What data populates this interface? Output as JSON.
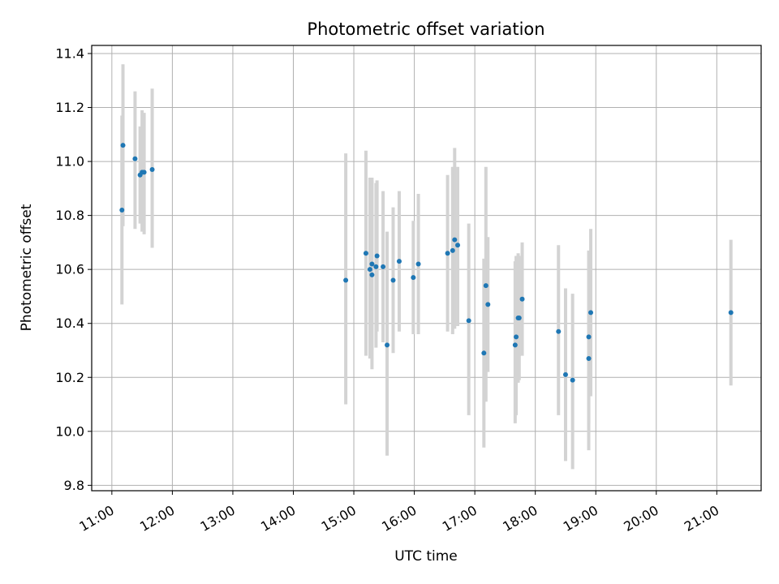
{
  "chart_data": {
    "type": "scatter",
    "title": "Photometric offset variation",
    "xlabel": "UTC time",
    "ylabel": "Photometric offset",
    "xlim": [
      "10:40",
      "21:44"
    ],
    "ylim": [
      9.78,
      11.43
    ],
    "xticks": [
      "11:00",
      "12:00",
      "13:00",
      "14:00",
      "15:00",
      "16:00",
      "17:00",
      "18:00",
      "19:00",
      "20:00",
      "21:00"
    ],
    "yticks": [
      9.8,
      10.0,
      10.2,
      10.4,
      10.6,
      10.8,
      11.0,
      11.2,
      11.4
    ],
    "grid": true,
    "marker_color": "#1f77b4",
    "errorbar_color": "#d3d3d3",
    "points": [
      {
        "x": "11:10",
        "y": 10.82,
        "low": 10.47,
        "high": 11.17
      },
      {
        "x": "11:11",
        "y": 11.06,
        "low": 10.76,
        "high": 11.36
      },
      {
        "x": "11:23",
        "y": 11.01,
        "low": 10.75,
        "high": 11.26
      },
      {
        "x": "11:28",
        "y": 10.95,
        "low": 10.77,
        "high": 11.13
      },
      {
        "x": "11:30",
        "y": 10.96,
        "low": 10.74,
        "high": 11.19
      },
      {
        "x": "11:32",
        "y": 10.96,
        "low": 10.73,
        "high": 11.18
      },
      {
        "x": "11:40",
        "y": 10.97,
        "low": 10.68,
        "high": 11.27
      },
      {
        "x": "14:52",
        "y": 10.56,
        "low": 10.1,
        "high": 11.03
      },
      {
        "x": "15:12",
        "y": 10.66,
        "low": 10.28,
        "high": 11.04
      },
      {
        "x": "15:16",
        "y": 10.6,
        "low": 10.27,
        "high": 10.94
      },
      {
        "x": "15:18",
        "y": 10.62,
        "low": 10.3,
        "high": 10.94
      },
      {
        "x": "15:18",
        "y": 10.58,
        "low": 10.23,
        "high": 10.93
      },
      {
        "x": "15:22",
        "y": 10.61,
        "low": 10.31,
        "high": 10.92
      },
      {
        "x": "15:23",
        "y": 10.65,
        "low": 10.37,
        "high": 10.93
      },
      {
        "x": "15:29",
        "y": 10.61,
        "low": 10.33,
        "high": 10.89
      },
      {
        "x": "15:33",
        "y": 10.32,
        "low": 9.91,
        "high": 10.74
      },
      {
        "x": "15:39",
        "y": 10.56,
        "low": 10.29,
        "high": 10.83
      },
      {
        "x": "15:45",
        "y": 10.63,
        "low": 10.37,
        "high": 10.89
      },
      {
        "x": "15:59",
        "y": 10.57,
        "low": 10.36,
        "high": 10.78
      },
      {
        "x": "16:04",
        "y": 10.62,
        "low": 10.36,
        "high": 10.88
      },
      {
        "x": "16:33",
        "y": 10.66,
        "low": 10.37,
        "high": 10.95
      },
      {
        "x": "16:38",
        "y": 10.67,
        "low": 10.36,
        "high": 10.98
      },
      {
        "x": "16:40",
        "y": 10.71,
        "low": 10.38,
        "high": 11.05
      },
      {
        "x": "16:43",
        "y": 10.69,
        "low": 10.39,
        "high": 10.98
      },
      {
        "x": "16:54",
        "y": 10.41,
        "low": 10.06,
        "high": 10.77
      },
      {
        "x": "17:09",
        "y": 10.29,
        "low": 9.94,
        "high": 10.64
      },
      {
        "x": "17:11",
        "y": 10.54,
        "low": 10.11,
        "high": 10.98
      },
      {
        "x": "17:13",
        "y": 10.47,
        "low": 10.22,
        "high": 10.72
      },
      {
        "x": "17:40",
        "y": 10.32,
        "low": 10.03,
        "high": 10.63
      },
      {
        "x": "17:41",
        "y": 10.35,
        "low": 10.06,
        "high": 10.65
      },
      {
        "x": "17:43",
        "y": 10.42,
        "low": 10.18,
        "high": 10.66
      },
      {
        "x": "17:44",
        "y": 10.42,
        "low": 10.19,
        "high": 10.65
      },
      {
        "x": "17:47",
        "y": 10.49,
        "low": 10.28,
        "high": 10.7
      },
      {
        "x": "18:23",
        "y": 10.37,
        "low": 10.06,
        "high": 10.69
      },
      {
        "x": "18:30",
        "y": 10.21,
        "low": 9.89,
        "high": 10.53
      },
      {
        "x": "18:37",
        "y": 10.19,
        "low": 9.86,
        "high": 10.51
      },
      {
        "x": "18:53",
        "y": 10.35,
        "low": 10.03,
        "high": 10.67
      },
      {
        "x": "18:53",
        "y": 10.27,
        "low": 9.93,
        "high": 10.62
      },
      {
        "x": "18:55",
        "y": 10.44,
        "low": 10.13,
        "high": 10.75
      },
      {
        "x": "21:14",
        "y": 10.44,
        "low": 10.17,
        "high": 10.71
      }
    ]
  }
}
